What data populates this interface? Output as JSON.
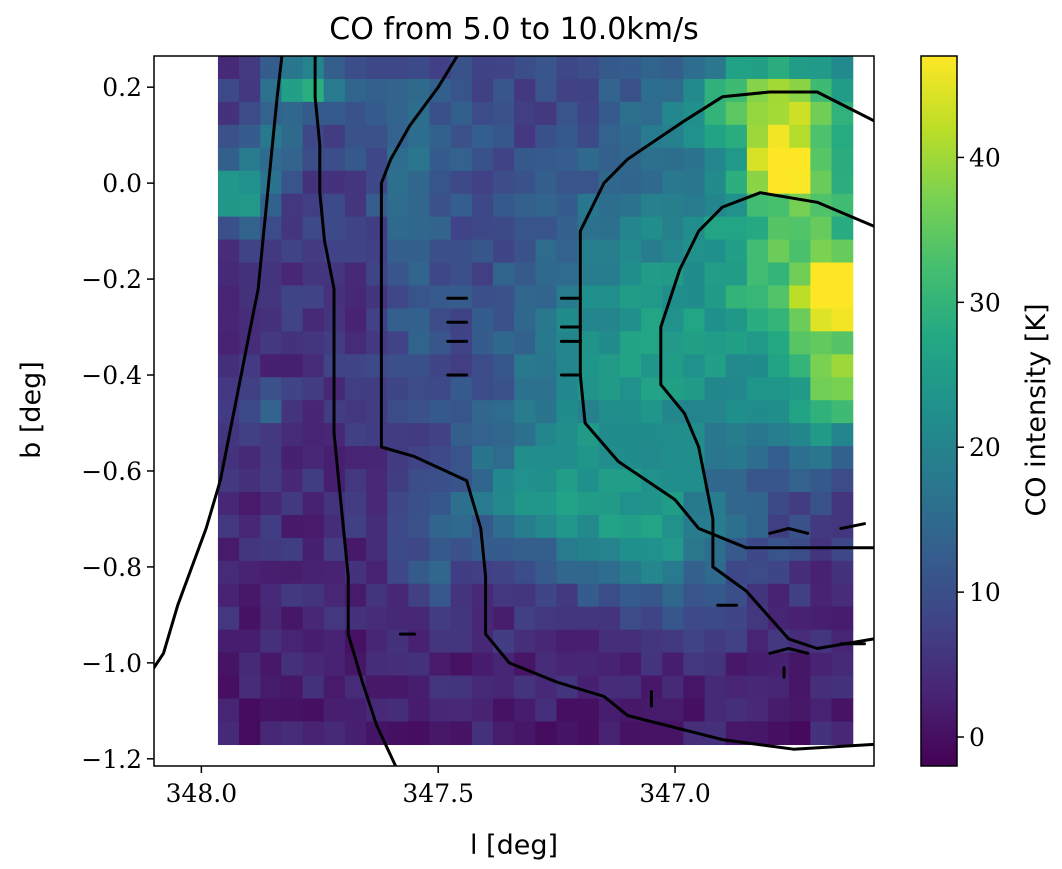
{
  "chart_data": {
    "type": "heatmap",
    "title": "CO from 5.0 to 10.0km/s",
    "xlabel": "l [deg]",
    "ylabel": "b [deg]",
    "colorbar_label": "CO intensity [K]",
    "colormap": "viridis",
    "x_axis_reversed": true,
    "xlim": [
      348.1,
      346.58
    ],
    "ylim": [
      -1.215,
      0.265
    ],
    "x_ticks": [
      {
        "value": 348.0,
        "label": "348.0"
      },
      {
        "value": 347.5,
        "label": "347.5"
      },
      {
        "value": 347.0,
        "label": "347.0"
      }
    ],
    "y_ticks": [
      {
        "value": 0.2,
        "label": "0.2"
      },
      {
        "value": 0.0,
        "label": "0.0"
      },
      {
        "value": -0.2,
        "label": "−0.2"
      },
      {
        "value": -0.4,
        "label": "−0.4"
      },
      {
        "value": -0.6,
        "label": "−0.6"
      },
      {
        "value": -0.8,
        "label": "−0.8"
      },
      {
        "value": -1.0,
        "label": "−1.0"
      },
      {
        "value": -1.2,
        "label": "−1.2"
      }
    ],
    "colorbar_range": [
      -2,
      47
    ],
    "colorbar_ticks": [
      {
        "value": 0,
        "label": "0"
      },
      {
        "value": 10,
        "label": "10"
      },
      {
        "value": 20,
        "label": "20"
      },
      {
        "value": 30,
        "label": "30"
      },
      {
        "value": 40,
        "label": "40"
      }
    ],
    "image_extent": {
      "l_start": 347.965,
      "l_end": 346.625,
      "b_top": 0.265,
      "b_bottom": -1.17
    },
    "grid": {
      "ncols": 30,
      "nrows": 30
    },
    "intensity_model": {
      "base": [
        {
          "b": 0.265,
          "value": 7
        },
        {
          "b": -0.3,
          "value": 5
        },
        {
          "b": -0.8,
          "value": 4
        },
        {
          "b": -1.17,
          "value": 2
        }
      ],
      "blobs": [
        {
          "l": 347.78,
          "b": 0.205,
          "amp": 22,
          "sl": 0.05,
          "sb": 0.03
        },
        {
          "l": 347.92,
          "b": -0.02,
          "amp": 20,
          "sl": 0.05,
          "sb": 0.05
        },
        {
          "l": 347.84,
          "b": 0.08,
          "amp": 10,
          "sl": 0.06,
          "sb": 0.05
        },
        {
          "l": 346.78,
          "b": 0.035,
          "amp": 40,
          "sl": 0.04,
          "sb": 0.035
        },
        {
          "l": 346.67,
          "b": -0.23,
          "amp": 32,
          "sl": 0.04,
          "sb": 0.04
        },
        {
          "l": 346.8,
          "b": 0.17,
          "amp": 22,
          "sl": 0.12,
          "sb": 0.06
        },
        {
          "l": 346.7,
          "b": -0.1,
          "amp": 22,
          "sl": 0.12,
          "sb": 0.25
        },
        {
          "l": 346.65,
          "b": -0.42,
          "amp": 18,
          "sl": 0.06,
          "sb": 0.1
        },
        {
          "l": 346.95,
          "b": -0.2,
          "amp": 13,
          "sl": 0.22,
          "sb": 0.3
        },
        {
          "l": 347.15,
          "b": -0.45,
          "amp": 12,
          "sl": 0.2,
          "sb": 0.22
        },
        {
          "l": 347.3,
          "b": -0.65,
          "amp": 12,
          "sl": 0.1,
          "sb": 0.08
        },
        {
          "l": 347.05,
          "b": -0.75,
          "amp": 13,
          "sl": 0.12,
          "sb": 0.1
        },
        {
          "l": 347.55,
          "b": -0.2,
          "amp": 7,
          "sl": 0.05,
          "sb": 0.2
        },
        {
          "l": 347.55,
          "b": 0.1,
          "amp": 6,
          "sl": 0.1,
          "sb": 0.12
        },
        {
          "l": 347.5,
          "b": -0.75,
          "amp": 8,
          "sl": 0.05,
          "sb": 0.1
        },
        {
          "l": 347.87,
          "b": -0.47,
          "amp": 8,
          "sl": 0.03,
          "sb": 0.04
        }
      ],
      "noise_amplitude": 3
    },
    "contours": [
      {
        "points": [
          [
            348.12,
            -1.04
          ],
          [
            348.08,
            -0.98
          ],
          [
            348.05,
            -0.88
          ],
          [
            348.02,
            -0.8
          ],
          [
            347.99,
            -0.72
          ],
          [
            347.96,
            -0.62
          ],
          [
            347.94,
            -0.52
          ],
          [
            347.92,
            -0.42
          ],
          [
            347.9,
            -0.32
          ],
          [
            347.88,
            -0.22
          ],
          [
            347.87,
            -0.12
          ],
          [
            347.86,
            -0.02
          ],
          [
            347.85,
            0.08
          ],
          [
            347.84,
            0.18
          ],
          [
            347.83,
            0.265
          ]
        ]
      },
      {
        "points": [
          [
            347.76,
            0.265
          ],
          [
            347.76,
            0.18
          ],
          [
            347.75,
            0.08
          ],
          [
            347.75,
            -0.02
          ],
          [
            347.74,
            -0.12
          ],
          [
            347.72,
            -0.22
          ],
          [
            347.72,
            -0.32
          ],
          [
            347.72,
            -0.42
          ],
          [
            347.72,
            -0.52
          ],
          [
            347.71,
            -0.62
          ],
          [
            347.7,
            -0.72
          ],
          [
            347.69,
            -0.82
          ],
          [
            347.69,
            -0.94
          ],
          [
            347.66,
            -1.04
          ],
          [
            347.63,
            -1.13
          ],
          [
            347.59,
            -1.215
          ]
        ]
      },
      {
        "points": [
          [
            347.46,
            0.265
          ],
          [
            347.5,
            0.2
          ],
          [
            347.56,
            0.12
          ],
          [
            347.6,
            0.05
          ],
          [
            347.62,
            0.0
          ],
          [
            347.62,
            -0.1
          ],
          [
            347.62,
            -0.3
          ],
          [
            347.62,
            -0.55
          ],
          [
            347.55,
            -0.57
          ],
          [
            347.44,
            -0.62
          ],
          [
            347.41,
            -0.72
          ],
          [
            347.4,
            -0.82
          ],
          [
            347.4,
            -0.94
          ],
          [
            347.35,
            -1.0
          ],
          [
            347.25,
            -1.04
          ],
          [
            347.15,
            -1.07
          ],
          [
            347.1,
            -1.11
          ],
          [
            346.9,
            -1.16
          ],
          [
            346.75,
            -1.18
          ],
          [
            346.58,
            -1.17
          ]
        ]
      },
      {
        "points": [
          [
            346.58,
            0.13
          ],
          [
            346.7,
            0.19
          ],
          [
            346.8,
            0.19
          ],
          [
            346.9,
            0.18
          ],
          [
            346.98,
            0.13
          ],
          [
            347.1,
            0.05
          ],
          [
            347.15,
            0.0
          ],
          [
            347.2,
            -0.1
          ],
          [
            347.2,
            -0.25
          ],
          [
            347.2,
            -0.4
          ],
          [
            347.19,
            -0.5
          ],
          [
            347.12,
            -0.58
          ],
          [
            347.0,
            -0.66
          ],
          [
            346.95,
            -0.72
          ],
          [
            346.85,
            -0.76
          ],
          [
            346.7,
            -0.76
          ],
          [
            346.58,
            -0.76
          ]
        ]
      },
      {
        "points": [
          [
            346.58,
            -0.09
          ],
          [
            346.7,
            -0.04
          ],
          [
            346.82,
            -0.02
          ],
          [
            346.9,
            -0.05
          ],
          [
            346.95,
            -0.1
          ],
          [
            346.99,
            -0.18
          ],
          [
            347.03,
            -0.3
          ],
          [
            347.03,
            -0.42
          ],
          [
            346.98,
            -0.48
          ],
          [
            346.95,
            -0.55
          ],
          [
            346.92,
            -0.7
          ],
          [
            346.92,
            -0.8
          ],
          [
            346.85,
            -0.85
          ],
          [
            346.76,
            -0.95
          ],
          [
            346.7,
            -0.97
          ],
          [
            346.58,
            -0.95
          ]
        ]
      },
      {
        "points": [
          [
            347.48,
            -0.24
          ],
          [
            347.44,
            -0.24
          ]
        ]
      },
      {
        "points": [
          [
            347.48,
            -0.29
          ],
          [
            347.44,
            -0.29
          ]
        ]
      },
      {
        "points": [
          [
            347.48,
            -0.33
          ],
          [
            347.44,
            -0.33
          ]
        ]
      },
      {
        "points": [
          [
            347.48,
            -0.4
          ],
          [
            347.44,
            -0.4
          ]
        ]
      },
      {
        "points": [
          [
            347.24,
            -0.24
          ],
          [
            347.2,
            -0.24
          ]
        ]
      },
      {
        "points": [
          [
            347.24,
            -0.3
          ],
          [
            347.2,
            -0.3
          ]
        ]
      },
      {
        "points": [
          [
            347.24,
            -0.33
          ],
          [
            347.2,
            -0.33
          ]
        ]
      },
      {
        "points": [
          [
            347.24,
            -0.4
          ],
          [
            347.2,
            -0.4
          ]
        ]
      },
      {
        "points": [
          [
            347.58,
            -0.94
          ],
          [
            347.55,
            -0.94
          ]
        ]
      },
      {
        "points": [
          [
            346.8,
            -0.73
          ],
          [
            346.76,
            -0.72
          ],
          [
            346.72,
            -0.73
          ]
        ]
      },
      {
        "points": [
          [
            346.65,
            -0.72
          ],
          [
            346.6,
            -0.71
          ]
        ]
      },
      {
        "points": [
          [
            346.8,
            -0.98
          ],
          [
            346.76,
            -0.97
          ],
          [
            346.72,
            -0.98
          ]
        ]
      },
      {
        "points": [
          [
            346.65,
            -0.96
          ],
          [
            346.6,
            -0.96
          ]
        ]
      },
      {
        "points": [
          [
            346.91,
            -0.88
          ],
          [
            346.87,
            -0.88
          ]
        ]
      },
      {
        "points": [
          [
            346.77,
            -1.01
          ],
          [
            346.77,
            -1.03
          ]
        ]
      },
      {
        "points": [
          [
            347.05,
            -1.06
          ],
          [
            347.05,
            -1.09
          ]
        ]
      }
    ]
  }
}
